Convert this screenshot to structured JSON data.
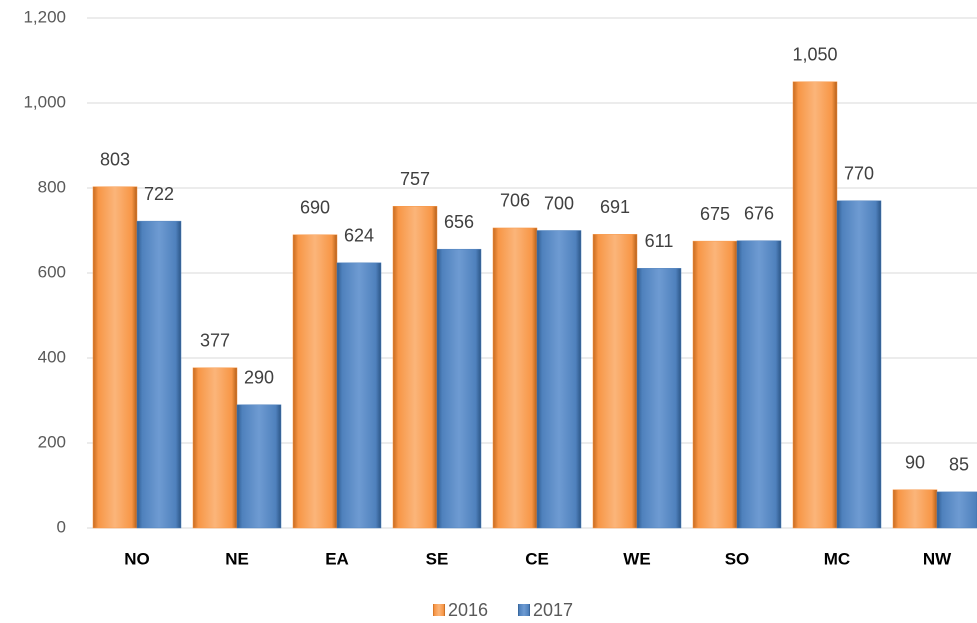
{
  "chart_data": {
    "type": "bar",
    "categories": [
      "NO",
      "NE",
      "EA",
      "SE",
      "CE",
      "WE",
      "SO",
      "MC",
      "NW"
    ],
    "series": [
      {
        "name": "2016",
        "color": "#f79646",
        "values": [
          803,
          377,
          690,
          757,
          706,
          691,
          675,
          1050,
          90
        ],
        "value_labels": [
          "803",
          "377",
          "690",
          "757",
          "706",
          "691",
          "675",
          "1,050",
          "90"
        ]
      },
      {
        "name": "2017",
        "color": "#4f81bd",
        "values": [
          722,
          290,
          624,
          656,
          700,
          611,
          676,
          770,
          85
        ],
        "value_labels": [
          "722",
          "290",
          "624",
          "656",
          "700",
          "611",
          "676",
          "770",
          "85"
        ]
      }
    ],
    "ylim": [
      0,
      1200
    ],
    "yticks": [
      0,
      200,
      400,
      600,
      800,
      {
        "value": 1000,
        "label": "1,000"
      },
      {
        "value": 1200,
        "label": "1,200"
      }
    ],
    "grid": true,
    "legend": "bottom"
  }
}
